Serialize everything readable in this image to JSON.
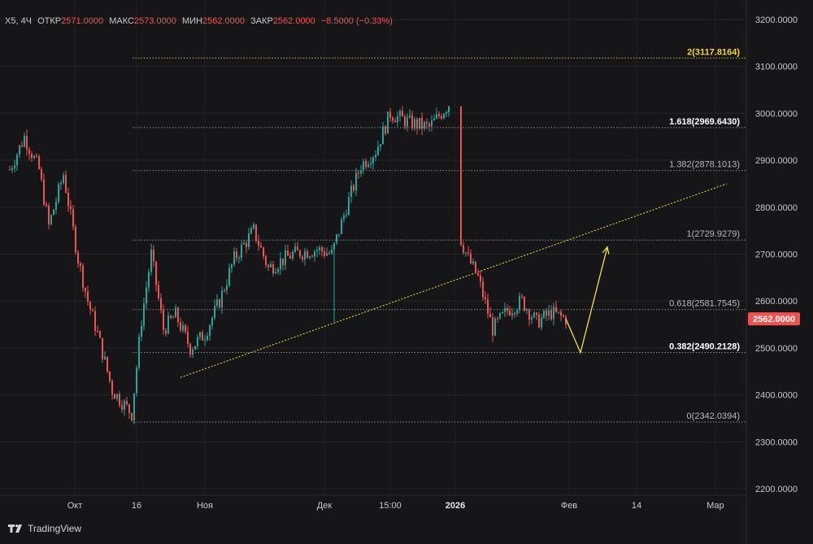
{
  "header": {
    "symbol": "X5, 4Ч",
    "open_label": "ОТКР",
    "open_value": "2571.0000",
    "high_label": "МАКС",
    "high_value": "2573.0000",
    "low_label": "МИН",
    "low_value": "2562.0000",
    "close_label": "ЗАКР",
    "close_value": "2562.0000",
    "change": "−8.5000",
    "change_pct": "(−0.33%)"
  },
  "brand": {
    "name": "TradingView",
    "icon": "tradingview-logo-icon"
  },
  "colors": {
    "background": "#161619",
    "up": "#26a69a",
    "down": "#ef5350",
    "fib_line": "#8a8a8a",
    "fib_top_line": "#c9b23a",
    "trend_line": "#f0e040",
    "arrow": "#f0e040",
    "price_badge": "#ef5350"
  },
  "chart_data": {
    "type": "candlestick",
    "ylim": [
      2200,
      3200
    ],
    "y_ticks": [
      "3200.0000",
      "3100.0000",
      "3000.0000",
      "2900.0000",
      "2800.0000",
      "2700.0000",
      "2600.0000",
      "2500.0000",
      "2400.0000",
      "2300.0000",
      "2200.0000"
    ],
    "y_tick_values": [
      3200,
      3100,
      3000,
      2900,
      2800,
      2700,
      2600,
      2500,
      2400,
      2300,
      2200
    ],
    "x_ticks": [
      {
        "label": "Окт",
        "bold": false
      },
      {
        "label": "16",
        "bold": false
      },
      {
        "label": "Ноя",
        "bold": false
      },
      {
        "label": "Дек",
        "bold": false
      },
      {
        "label": "15:00",
        "bold": false
      },
      {
        "label": "2026",
        "bold": true
      },
      {
        "label": "Фев",
        "bold": false
      },
      {
        "label": "14",
        "bold": false
      },
      {
        "label": "Мар",
        "bold": false
      }
    ],
    "last_price": "2562.0000",
    "last_price_value": 2562,
    "fib_levels": [
      {
        "ratio": "2",
        "value": 3117.8164,
        "label": "2(3117.8164)",
        "style": "gold"
      },
      {
        "ratio": "1.618",
        "value": 2969.643,
        "label": "1.618(2969.6430)",
        "style": "bold"
      },
      {
        "ratio": "1.382",
        "value": 2878.1013,
        "label": "1.382(2878.1013)",
        "style": "normal"
      },
      {
        "ratio": "1",
        "value": 2729.9279,
        "label": "1(2729.9279)",
        "style": "normal"
      },
      {
        "ratio": "0.618",
        "value": 2581.7545,
        "label": "0.618(2581.7545)",
        "style": "normal"
      },
      {
        "ratio": "0.382",
        "value": 2490.2128,
        "label": "0.382(2490.2128)",
        "style": "bold"
      },
      {
        "ratio": "0",
        "value": 2342.0394,
        "label": "0(2342.0394)",
        "style": "normal"
      }
    ],
    "segments": [
      {
        "i0": 0,
        "i1": 6,
        "v0": 2880,
        "v1": 2950
      },
      {
        "i0": 6,
        "i1": 12,
        "v0": 2950,
        "v1": 2880
      },
      {
        "i0": 12,
        "i1": 16,
        "v0": 2880,
        "v1": 2760
      },
      {
        "i0": 16,
        "i1": 22,
        "v0": 2760,
        "v1": 2870
      },
      {
        "i0": 22,
        "i1": 28,
        "v0": 2870,
        "v1": 2690
      },
      {
        "i0": 28,
        "i1": 32,
        "v0": 2690,
        "v1": 2600
      },
      {
        "i0": 32,
        "i1": 36,
        "v0": 2600,
        "v1": 2530
      },
      {
        "i0": 36,
        "i1": 42,
        "v0": 2530,
        "v1": 2410
      },
      {
        "i0": 42,
        "i1": 50,
        "v0": 2410,
        "v1": 2360
      },
      {
        "i0": 50,
        "i1": 54,
        "v0": 2360,
        "v1": 2560
      },
      {
        "i0": 54,
        "i1": 58,
        "v0": 2560,
        "v1": 2700
      },
      {
        "i0": 58,
        "i1": 63,
        "v0": 2700,
        "v1": 2540
      },
      {
        "i0": 63,
        "i1": 68,
        "v0": 2540,
        "v1": 2570
      },
      {
        "i0": 68,
        "i1": 74,
        "v0": 2570,
        "v1": 2500
      },
      {
        "i0": 74,
        "i1": 80,
        "v0": 2500,
        "v1": 2530
      },
      {
        "i0": 80,
        "i1": 86,
        "v0": 2530,
        "v1": 2600
      },
      {
        "i0": 86,
        "i1": 92,
        "v0": 2600,
        "v1": 2690
      },
      {
        "i0": 92,
        "i1": 100,
        "v0": 2690,
        "v1": 2750
      },
      {
        "i0": 100,
        "i1": 106,
        "v0": 2750,
        "v1": 2670
      },
      {
        "i0": 106,
        "i1": 116,
        "v0": 2670,
        "v1": 2700
      },
      {
        "i0": 116,
        "i1": 126,
        "v0": 2700,
        "v1": 2710
      },
      {
        "i0": 126,
        "i1": 132,
        "v0": 2710,
        "v1": 2700
      },
      {
        "i0": 132,
        "i1": 138,
        "v0": 2700,
        "v1": 2800
      },
      {
        "i0": 138,
        "i1": 144,
        "v0": 2800,
        "v1": 2890
      },
      {
        "i0": 144,
        "i1": 150,
        "v0": 2890,
        "v1": 2920
      },
      {
        "i0": 150,
        "i1": 156,
        "v0": 2920,
        "v1": 3000
      },
      {
        "i0": 156,
        "i1": 164,
        "v0": 3000,
        "v1": 2980
      },
      {
        "i0": 164,
        "i1": 172,
        "v0": 2980,
        "v1": 2970
      },
      {
        "i0": 172,
        "i1": 180,
        "v0": 2970,
        "v1": 3020
      },
      {
        "i0": 180,
        "i1": 181,
        "v0": 3020,
        "v1": 3015
      }
    ],
    "gap": {
      "i0": 181,
      "i1": 185
    },
    "segments2": [
      {
        "i0": 185,
        "i1": 188,
        "v0": 2730,
        "v1": 2690
      },
      {
        "i0": 188,
        "i1": 192,
        "v0": 2690,
        "v1": 2650
      },
      {
        "i0": 192,
        "i1": 198,
        "v0": 2650,
        "v1": 2540
      },
      {
        "i0": 198,
        "i1": 204,
        "v0": 2540,
        "v1": 2580
      },
      {
        "i0": 204,
        "i1": 210,
        "v0": 2580,
        "v1": 2600
      },
      {
        "i0": 210,
        "i1": 216,
        "v0": 2600,
        "v1": 2555
      },
      {
        "i0": 216,
        "i1": 222,
        "v0": 2555,
        "v1": 2575
      },
      {
        "i0": 222,
        "i1": 228,
        "v0": 2575,
        "v1": 2562
      }
    ],
    "spike": {
      "index": 133,
      "low": 2555
    },
    "trend_line": {
      "from": {
        "i": 70,
        "v": 2437
      },
      "to": {
        "i": 294,
        "v": 2850
      }
    },
    "projection_arrow": [
      {
        "i": 228,
        "v": 2562
      },
      {
        "i": 234,
        "v": 2490
      },
      {
        "i": 245,
        "v": 2715
      }
    ]
  }
}
